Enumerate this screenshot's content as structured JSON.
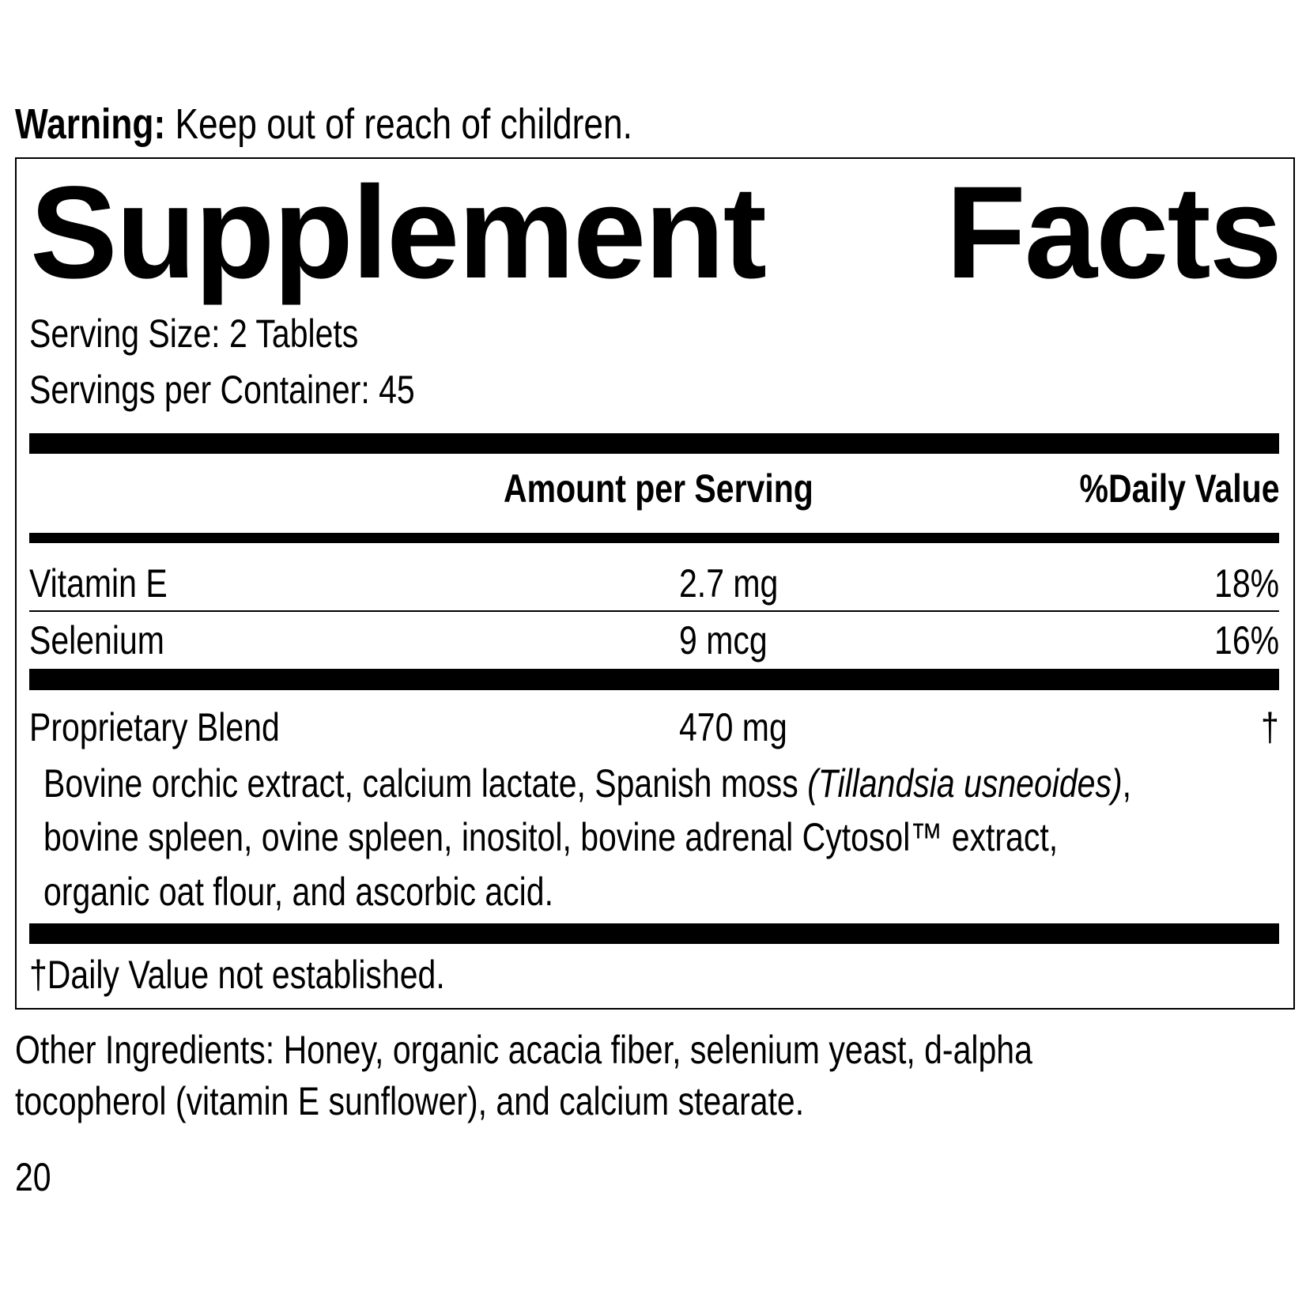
{
  "warning": {
    "label": "Warning:",
    "text": "Keep out of reach of children."
  },
  "panel": {
    "title_word1": "Supplement",
    "title_word2": "Facts",
    "serving_size": "Serving Size: 2 Tablets",
    "servings_per_container": "Servings per Container: 45",
    "header": {
      "amount": "Amount per Serving",
      "daily_value": "%Daily Value"
    },
    "rows": [
      {
        "name": "Vitamin E",
        "amount": "2.7 mg",
        "dv": "18%"
      },
      {
        "name": "Selenium",
        "amount": "9 mcg",
        "dv": "16%"
      }
    ],
    "blend": {
      "name": "Proprietary Blend",
      "amount": "470 mg",
      "dv": "†",
      "line1_a": "Bovine orchic extract, calcium lactate, Spanish moss ",
      "line1_italic": "(Tillandsia usneoides)",
      "line1_b": ",",
      "line2": "bovine spleen, ovine spleen, inositol, bovine adrenal Cytosol™ extract,",
      "line3": "organic oat flour, and ascorbic acid."
    },
    "footnote": "†Daily Value not established."
  },
  "other_ingredients": {
    "line1": "Other Ingredients: Honey, organic acacia fiber, selenium yeast, d-alpha",
    "line2": "tocopherol (vitamin E sunflower), and calcium stearate."
  },
  "page_number": "20"
}
